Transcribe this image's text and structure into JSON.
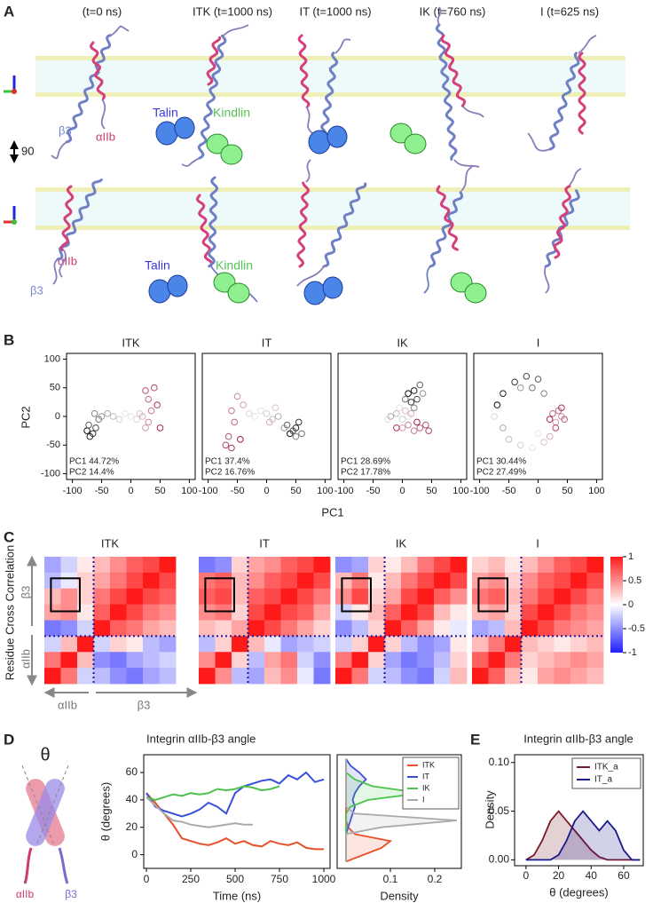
{
  "panel_letters": [
    "A",
    "B",
    "C",
    "D",
    "E"
  ],
  "panel_a": {
    "headers": [
      "(t=0 ns)",
      "ITK (t=1000 ns)",
      "IT (t=1000 ns)",
      "IK (t=760 ns)",
      "I (t=625 ns)"
    ],
    "rotation_label": "90",
    "row1_labels": [
      "β3",
      "αIIb",
      "Talin",
      "Kindlin"
    ],
    "row2_labels": [
      "αIIb",
      "β3",
      "Talin",
      "Kindlin"
    ]
  },
  "panel_c_labels": {
    "ylabel": "Residue Cross Correlation",
    "left": [
      "β3",
      "αIIb"
    ],
    "bottom": [
      "αIIb",
      "β3"
    ]
  },
  "panel_d_schematic": {
    "angle": "θ",
    "chains": [
      "αIIb",
      "β3"
    ]
  },
  "chart_data": [
    {
      "type": "scatter",
      "title": "ITK",
      "xlabel": "PC1",
      "ylabel": "PC2",
      "x": [
        -75,
        -70,
        -65,
        -60,
        -72,
        -55,
        -62,
        -50,
        -40,
        -30,
        -20,
        -10,
        0,
        10,
        15,
        20,
        25,
        30,
        35,
        30,
        25,
        40,
        45,
        50
      ],
      "y": [
        -25,
        -35,
        -30,
        -20,
        -15,
        -5,
        5,
        0,
        5,
        0,
        -5,
        5,
        0,
        -5,
        5,
        0,
        -20,
        -10,
        10,
        30,
        45,
        50,
        20,
        -20
      ],
      "annotations": [
        "PC1 44.72%",
        "PC2 14.4%"
      ],
      "colormap": [
        "#111111",
        "#eeeeee",
        "#a3204f"
      ],
      "xlim": [
        -110,
        110
      ],
      "ylim": [
        -110,
        110
      ],
      "xticks": [
        -100,
        -50,
        0,
        50,
        100
      ],
      "yticks": [
        100,
        50,
        0,
        -50,
        -100
      ]
    },
    {
      "type": "scatter",
      "title": "IT",
      "x": [
        40,
        50,
        55,
        45,
        35,
        60,
        50,
        30,
        20,
        10,
        0,
        -10,
        -20,
        -30,
        15,
        5,
        -40,
        -50,
        -60,
        -55,
        -65,
        -70,
        -60,
        -45
      ],
      "y": [
        -30,
        -20,
        -10,
        -25,
        -15,
        -30,
        -35,
        -20,
        0,
        -5,
        5,
        10,
        0,
        5,
        15,
        -10,
        20,
        35,
        10,
        -10,
        -35,
        -50,
        -55,
        -40
      ],
      "annotations": [
        "PC1 37.4%",
        "PC2 16.76%"
      ],
      "colormap": [
        "#111111",
        "#eeeeee",
        "#a3204f"
      ],
      "xlim": [
        -110,
        110
      ],
      "ylim": [
        -110,
        110
      ],
      "xticks": [
        -100,
        -50,
        0,
        50,
        100
      ]
    },
    {
      "type": "scatter",
      "title": "IK",
      "x": [
        10,
        20,
        15,
        25,
        30,
        5,
        20,
        35,
        -20,
        -10,
        0,
        -5,
        10,
        -25,
        5,
        15,
        0,
        10,
        20,
        30,
        40,
        45,
        -10,
        25
      ],
      "y": [
        40,
        45,
        25,
        30,
        55,
        30,
        15,
        40,
        0,
        5,
        -5,
        15,
        0,
        -5,
        10,
        5,
        -20,
        -15,
        -25,
        -20,
        -15,
        -25,
        -20,
        -10
      ],
      "annotations": [
        "PC1 28.69%",
        "PC2 17.78%"
      ],
      "colormap": [
        "#111111",
        "#eeeeee",
        "#a3204f"
      ],
      "xlim": [
        -110,
        110
      ],
      "ylim": [
        -110,
        110
      ],
      "xticks": [
        -100,
        -50,
        0,
        50,
        100
      ]
    },
    {
      "type": "scatter",
      "title": "I",
      "x": [
        -70,
        -60,
        -40,
        -20,
        0,
        -10,
        10,
        -30,
        -60,
        -50,
        -30,
        -10,
        0,
        -75,
        10,
        20,
        30,
        40,
        35,
        25,
        45,
        30,
        40,
        20
      ],
      "y": [
        20,
        40,
        60,
        70,
        65,
        50,
        40,
        50,
        -20,
        -40,
        -50,
        -55,
        -30,
        0,
        -45,
        -35,
        -10,
        0,
        10,
        5,
        -5,
        -20,
        15,
        -5
      ],
      "annotations": [
        "PC1 30.44%",
        "PC2 27.49%"
      ],
      "colormap": [
        "#111111",
        "#eeeeee",
        "#a3204f"
      ],
      "xlim": [
        -110,
        110
      ],
      "ylim": [
        -110,
        110
      ],
      "xticks": [
        -100,
        -50,
        0,
        50,
        100
      ]
    },
    {
      "type": "heatmap",
      "title": "ITK",
      "zlim": [
        -1,
        1
      ],
      "colorscale": [
        "#1f1fff",
        "#ffffff",
        "#ff1a1a"
      ],
      "z": [
        [
          -0.4,
          -0.2,
          0.1,
          0.3,
          0.5,
          0.7,
          0.8,
          1
        ],
        [
          -0.3,
          -0.1,
          0.2,
          0.4,
          0.6,
          0.8,
          1,
          0.8
        ],
        [
          0.3,
          0.5,
          0.2,
          0.6,
          0.8,
          1,
          0.8,
          0.7
        ],
        [
          0.4,
          0.5,
          0.1,
          0.7,
          1,
          0.8,
          0.6,
          0.5
        ],
        [
          -0.6,
          -0.5,
          -0.2,
          1,
          0.7,
          0.6,
          0.4,
          0.3
        ],
        [
          -0.2,
          0.3,
          1,
          -0.2,
          0.2,
          0.1,
          -0.3,
          -0.4
        ],
        [
          0.6,
          1,
          0.3,
          -0.5,
          -0.6,
          -0.4,
          -0.3,
          -0.2
        ],
        [
          1,
          0.6,
          -0.2,
          -0.3,
          -0.5,
          -0.6,
          -0.4,
          -0.3
        ]
      ]
    },
    {
      "type": "heatmap",
      "title": "IT",
      "zlim": [
        -1,
        1
      ],
      "colorscale": [
        "#1f1fff",
        "#ffffff",
        "#ff1a1a"
      ],
      "z": [
        [
          -0.6,
          -0.5,
          0.2,
          0.4,
          0.5,
          0.7,
          0.8,
          1
        ],
        [
          0.6,
          0.7,
          0.3,
          0.5,
          0.7,
          0.8,
          1,
          0.8
        ],
        [
          0.7,
          0.8,
          0.3,
          0.7,
          0.8,
          1,
          0.8,
          0.6
        ],
        [
          0.5,
          0.6,
          0.2,
          0.8,
          1,
          0.8,
          0.7,
          0.4
        ],
        [
          0.3,
          0.2,
          0.4,
          1,
          0.8,
          0.6,
          0.4,
          0.2
        ],
        [
          -0.3,
          0.2,
          1,
          0.3,
          -0.1,
          -0.4,
          -0.3,
          -0.2
        ],
        [
          0.5,
          1,
          0.2,
          -0.3,
          0.4,
          0.6,
          -0.2,
          -0.5
        ],
        [
          1,
          0.5,
          -0.3,
          -0.4,
          0.3,
          0.5,
          -0.1,
          -0.6
        ]
      ]
    },
    {
      "type": "heatmap",
      "title": "IK",
      "zlim": [
        -1,
        1
      ],
      "colorscale": [
        "#1f1fff",
        "#ffffff",
        "#ff1a1a"
      ],
      "z": [
        [
          -0.5,
          -0.4,
          0.2,
          0.1,
          0.3,
          0.6,
          0.8,
          1
        ],
        [
          0.3,
          0.6,
          0.1,
          0.3,
          0.6,
          0.8,
          1,
          0.8
        ],
        [
          0.5,
          0.8,
          0.2,
          0.4,
          0.8,
          1,
          0.7,
          0.5
        ],
        [
          -0.2,
          0.1,
          0.3,
          0.7,
          1,
          0.8,
          0.3,
          0.1
        ],
        [
          -0.5,
          -0.3,
          0.2,
          1,
          0.7,
          0.4,
          0.1,
          -0.1
        ],
        [
          -0.2,
          0.2,
          1,
          0.2,
          -0.3,
          -0.5,
          -0.4,
          0.1
        ],
        [
          0.6,
          1,
          0.2,
          -0.4,
          -0.6,
          -0.5,
          -0.3,
          0.2
        ],
        [
          1,
          0.6,
          -0.2,
          -0.3,
          -0.5,
          -0.6,
          -0.2,
          0.3
        ]
      ]
    },
    {
      "type": "heatmap",
      "title": "I",
      "zlim": [
        -1,
        1
      ],
      "colorscale": [
        "#1f1fff",
        "#ffffff",
        "#ff1a1a"
      ],
      "colorbar_ticks": [
        1,
        0.5,
        0,
        -0.5,
        -1
      ],
      "z": [
        [
          0.2,
          0.3,
          0.1,
          0.3,
          0.5,
          0.7,
          0.8,
          1
        ],
        [
          0.4,
          0.5,
          0.2,
          0.5,
          0.7,
          0.8,
          1,
          0.8
        ],
        [
          0.6,
          0.7,
          0.3,
          0.6,
          0.8,
          1,
          0.8,
          0.6
        ],
        [
          0.3,
          0.4,
          0.2,
          0.8,
          1,
          0.8,
          0.6,
          0.5
        ],
        [
          -0.4,
          -0.3,
          0.3,
          1,
          0.8,
          0.6,
          0.5,
          0.4
        ],
        [
          0.3,
          0.6,
          1,
          0.3,
          0.2,
          0.1,
          0.2,
          0.3
        ],
        [
          0.7,
          1,
          0.6,
          0.2,
          0.3,
          0.4,
          0.5,
          0.4
        ],
        [
          1,
          0.7,
          0.3,
          0.1,
          0.4,
          0.5,
          0.4,
          0.3
        ]
      ]
    },
    {
      "type": "line",
      "title": "Integrin αIIb-β3 angle",
      "xlabel": "Time (ns)",
      "ylabel": "θ (degrees)",
      "x": [
        0,
        50,
        100,
        150,
        200,
        250,
        300,
        350,
        400,
        450,
        500,
        550,
        600,
        650,
        700,
        750,
        800,
        850,
        900,
        950,
        1000
      ],
      "series": [
        {
          "color": "#e8502a",
          "values": [
            45,
            38,
            30,
            22,
            12,
            10,
            8,
            7,
            9,
            12,
            8,
            10,
            7,
            6,
            10,
            8,
            7,
            9,
            5,
            4,
            4
          ]
        },
        {
          "color": "#3a4fd8",
          "values": [
            45,
            35,
            32,
            30,
            28,
            30,
            33,
            38,
            35,
            30,
            45,
            50,
            52,
            54,
            55,
            52,
            58,
            55,
            60,
            53,
            55
          ]
        },
        {
          "color": "#4cc24c",
          "values": [
            42,
            40,
            42,
            44,
            43,
            45,
            44,
            45,
            48,
            47,
            48,
            50,
            49,
            47,
            48,
            50,
            null,
            null,
            null,
            null,
            null
          ]
        },
        {
          "color": "#aaaaaa",
          "values": [
            42,
            36,
            30,
            25,
            24,
            22,
            21,
            20,
            21,
            22,
            23,
            22,
            22,
            null,
            null,
            null,
            null,
            null,
            null,
            null,
            null
          ]
        }
      ],
      "xlim": [
        -15,
        1035
      ],
      "ylim": [
        -10,
        73
      ],
      "xticks": [
        0,
        250,
        500,
        750,
        1000
      ],
      "yticks": [
        0,
        20,
        40,
        60
      ]
    },
    {
      "type": "density-h",
      "xlabel": "Density",
      "legend": "top-right",
      "y": [
        -5,
        0,
        5,
        10,
        15,
        20,
        25,
        30,
        35,
        40,
        45,
        50,
        55,
        60,
        65,
        70
      ],
      "series": [
        {
          "name": "ITK",
          "color": "#e8502a",
          "values": [
            0,
            0.04,
            0.08,
            0.1,
            0.02,
            0.005,
            0,
            0,
            0,
            0,
            0,
            0,
            0,
            0,
            0,
            0
          ]
        },
        {
          "name": "IT",
          "color": "#3a4fd8",
          "values": [
            0,
            0,
            0,
            0,
            0,
            0.005,
            0.01,
            0.015,
            0.02,
            0.015,
            0.02,
            0.03,
            0.045,
            0.03,
            0.01,
            0
          ]
        },
        {
          "name": "IK",
          "color": "#4cc24c",
          "values": [
            0,
            0,
            0,
            0,
            0,
            0,
            0,
            0,
            0.01,
            0.05,
            0.17,
            0.06,
            0.02,
            0,
            0,
            0
          ]
        },
        {
          "name": "I",
          "color": "#aaaaaa",
          "values": [
            0,
            0,
            0,
            0,
            0,
            0.08,
            0.25,
            0.02,
            0,
            0,
            0,
            0,
            0,
            0,
            0,
            0
          ]
        }
      ],
      "xlim": [
        -0.02,
        0.26
      ],
      "ylim": [
        -10,
        73
      ],
      "xticks": [
        0.1,
        0.2
      ]
    },
    {
      "type": "density",
      "title": "Integrin αIIb-β3 angle",
      "xlabel": "θ (degrees)",
      "ylabel": "Density",
      "legend": "top-right",
      "x": [
        0,
        5,
        10,
        15,
        20,
        25,
        30,
        35,
        40,
        45,
        50,
        55,
        60,
        65,
        70
      ],
      "series": [
        {
          "name": "ITK_a",
          "color": "#7a1a2a",
          "values": [
            0,
            0.005,
            0.02,
            0.04,
            0.05,
            0.04,
            0.03,
            0.02,
            0.01,
            0.003,
            0,
            0,
            0,
            0,
            0
          ]
        },
        {
          "name": "IT_a",
          "color": "#1a1a8a",
          "values": [
            0,
            0,
            0,
            0,
            0.005,
            0.02,
            0.04,
            0.05,
            0.04,
            0.03,
            0.04,
            0.03,
            0.01,
            0,
            0
          ]
        }
      ],
      "xlim": [
        -7,
        72
      ],
      "ylim": [
        -0.006,
        0.108
      ],
      "xticks": [
        0,
        20,
        40,
        60
      ],
      "yticks": [
        {
          "value": 0,
          "label": "0.00"
        },
        0.05,
        {
          "value": 0.1,
          "label": "0.10"
        }
      ]
    }
  ]
}
